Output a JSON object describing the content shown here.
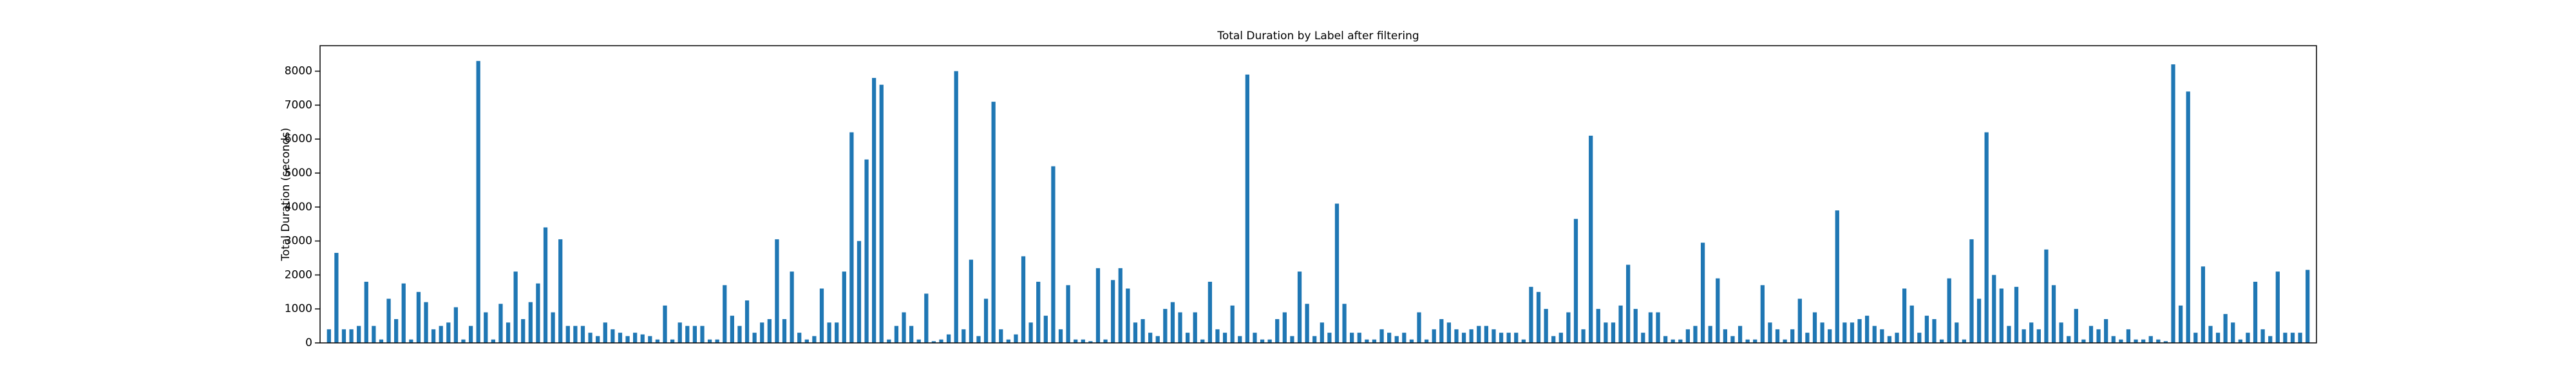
{
  "chart_data": {
    "type": "bar",
    "title": "Total Duration by Label after filtering",
    "y_label": "Total Duration (seconds)",
    "color": "#1f77b4",
    "ylim": [
      0,
      8750
    ],
    "yticks": [
      0,
      1000,
      2000,
      3000,
      4000,
      5000,
      6000,
      7000,
      8000
    ],
    "categories": [
      null,
      null,
      null,
      null,
      null,
      null,
      null,
      null,
      null,
      null,
      null,
      null,
      null,
      null,
      null,
      null,
      null,
      null,
      null,
      null,
      null,
      null,
      null,
      null,
      null,
      null,
      null,
      null,
      null,
      null,
      null,
      null,
      null,
      null,
      null,
      null,
      null,
      null,
      null,
      null,
      null,
      null,
      null,
      null,
      null,
      null,
      null,
      null,
      null,
      null,
      null,
      null,
      null,
      null,
      null,
      null,
      null,
      null,
      null,
      null,
      null,
      null,
      null,
      null,
      null,
      null,
      null,
      null,
      null,
      null,
      null,
      null,
      null,
      null,
      null,
      null,
      null,
      null,
      null,
      null,
      null,
      null,
      null,
      null,
      null,
      null,
      null,
      null,
      null,
      null,
      null,
      null,
      null,
      null,
      null,
      null,
      null,
      null,
      null,
      null,
      null,
      null,
      null,
      null,
      null,
      null,
      null,
      null,
      null,
      null,
      null,
      null,
      null,
      null,
      null,
      null,
      null,
      null,
      null,
      null,
      null,
      null,
      null,
      null,
      null,
      null,
      null,
      null,
      null,
      null,
      null,
      null,
      null,
      null,
      null,
      null,
      null,
      null,
      null,
      null,
      null,
      null,
      null,
      null,
      null,
      null,
      null,
      null,
      null,
      null,
      null,
      null,
      null,
      null,
      null,
      null,
      null,
      null,
      null,
      null,
      null,
      null,
      null,
      null,
      null,
      null,
      null,
      null,
      null,
      null,
      null,
      null,
      null,
      null,
      null,
      null,
      null,
      null,
      null,
      null,
      null,
      null,
      null,
      null,
      null,
      null,
      null,
      null,
      null,
      null,
      null,
      null,
      null,
      null,
      null,
      null,
      null,
      null,
      null,
      null,
      null,
      null,
      null,
      null,
      null,
      null,
      null,
      null,
      null,
      null,
      null,
      null,
      null,
      null,
      null,
      null,
      null,
      null,
      null,
      null,
      null,
      null,
      null,
      null,
      null,
      null,
      null,
      null,
      null,
      null,
      null,
      null,
      null,
      null,
      null,
      null,
      null,
      null,
      null,
      null,
      null,
      null,
      null,
      null,
      null,
      null,
      null,
      null,
      null,
      null,
      null,
      null,
      null,
      null,
      null,
      null,
      null,
      null,
      null,
      null,
      null,
      null,
      null,
      null,
      null,
      null
    ],
    "values": [
      400,
      2650,
      400,
      400,
      500,
      1800,
      500,
      100,
      1300,
      700,
      1750,
      100,
      1500,
      1200,
      400,
      500,
      600,
      1050,
      100,
      500,
      8300,
      900,
      100,
      1150,
      600,
      2100,
      700,
      1200,
      1750,
      3400,
      900,
      3050,
      500,
      500,
      500,
      300,
      200,
      600,
      400,
      300,
      200,
      300,
      250,
      200,
      100,
      1100,
      100,
      600,
      500,
      500,
      500,
      100,
      100,
      1700,
      800,
      500,
      1250,
      300,
      600,
      700,
      3050,
      700,
      2100,
      300,
      100,
      200,
      1600,
      600,
      600,
      2100,
      6200,
      3000,
      5400,
      7800,
      7600,
      100,
      500,
      900,
      500,
      100,
      1450,
      50,
      100,
      250,
      8000,
      400,
      2450,
      200,
      1300,
      7100,
      400,
      100,
      250,
      2550,
      600,
      1800,
      800,
      5200,
      400,
      1700,
      100,
      100,
      50,
      2200,
      100,
      1850,
      2200,
      1600,
      600,
      700,
      300,
      200,
      1000,
      1200,
      900,
      300,
      900,
      100,
      1800,
      400,
      300,
      1100,
      200,
      7900,
      300,
      100,
      100,
      700,
      900,
      200,
      2100,
      1150,
      200,
      600,
      300,
      4100,
      1150,
      300,
      300,
      100,
      100,
      400,
      300,
      200,
      300,
      100,
      900,
      100,
      400,
      700,
      600,
      400,
      300,
      400,
      500,
      500,
      400,
      300,
      300,
      300,
      100,
      1650,
      1500,
      1000,
      200,
      300,
      900,
      3650,
      400,
      6100,
      1000,
      600,
      600,
      1100,
      2300,
      1000,
      300,
      900,
      900,
      200,
      100,
      100,
      400,
      500,
      2950,
      500,
      1900,
      400,
      200,
      500,
      100,
      100,
      1700,
      600,
      400,
      100,
      400,
      1300,
      300,
      900,
      600,
      400,
      3900,
      600,
      600,
      700,
      800,
      500,
      400,
      200,
      300,
      1600,
      1100,
      300,
      800,
      700,
      100,
      1900,
      600,
      100,
      3050,
      1300,
      6200,
      2000,
      1600,
      500,
      1650,
      400,
      600,
      400,
      2750,
      1700,
      600,
      200,
      1000,
      100,
      500,
      400,
      700,
      200,
      100,
      400,
      100,
      100,
      200,
      100,
      50,
      8200,
      1100,
      7400,
      300,
      2250,
      500,
      300,
      850,
      600,
      100,
      300,
      1800,
      400,
      200,
      2100,
      300,
      300,
      300,
      2150
    ]
  }
}
